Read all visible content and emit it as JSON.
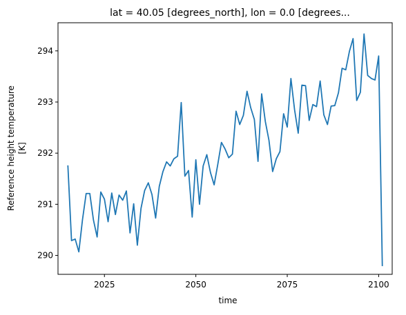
{
  "chart_data": {
    "type": "line",
    "title": "lat = 40.05 [degrees_north], lon = 0.0 [degrees...",
    "xlabel": "time",
    "ylabel": [
      "Reference height temperature",
      "[K]"
    ],
    "xlim": [
      2012.3,
      2103.7
    ],
    "ylim": [
      289.63,
      294.55
    ],
    "xticks": [
      2025,
      2050,
      2075,
      2100
    ],
    "yticks": [
      290,
      291,
      292,
      293,
      294
    ],
    "grid": false,
    "legend": "none",
    "series": [
      {
        "color": "#1f77b4",
        "x": [
          2015,
          2016,
          2017,
          2018,
          2019,
          2020,
          2021,
          2022,
          2023,
          2024,
          2025,
          2026,
          2027,
          2028,
          2029,
          2030,
          2031,
          2032,
          2033,
          2034,
          2035,
          2036,
          2037,
          2038,
          2039,
          2040,
          2041,
          2042,
          2043,
          2044,
          2045,
          2046,
          2047,
          2048,
          2049,
          2050,
          2051,
          2052,
          2053,
          2054,
          2055,
          2056,
          2057,
          2058,
          2059,
          2060,
          2061,
          2062,
          2063,
          2064,
          2065,
          2066,
          2067,
          2068,
          2069,
          2070,
          2071,
          2072,
          2073,
          2074,
          2075,
          2076,
          2077,
          2078,
          2079,
          2080,
          2081,
          2082,
          2083,
          2084,
          2085,
          2086,
          2087,
          2088,
          2089,
          2090,
          2091,
          2092,
          2093,
          2094,
          2095,
          2096,
          2097,
          2098,
          2099,
          2100,
          2101
        ],
        "values": [
          291.76,
          290.29,
          290.32,
          290.07,
          290.7,
          291.21,
          291.21,
          290.69,
          290.36,
          291.24,
          291.1,
          290.66,
          291.22,
          290.8,
          291.18,
          291.08,
          291.26,
          290.44,
          291.01,
          290.2,
          290.92,
          291.27,
          291.42,
          291.19,
          290.73,
          291.35,
          291.64,
          291.83,
          291.75,
          291.89,
          291.94,
          292.99,
          291.55,
          291.66,
          290.75,
          291.87,
          291.0,
          291.75,
          291.97,
          291.62,
          291.38,
          291.78,
          292.21,
          292.08,
          291.91,
          291.98,
          292.82,
          292.56,
          292.74,
          293.21,
          292.89,
          292.66,
          291.84,
          293.16,
          292.62,
          292.25,
          291.64,
          291.89,
          292.03,
          292.77,
          292.51,
          293.46,
          292.85,
          292.39,
          293.33,
          293.32,
          292.64,
          292.95,
          292.91,
          293.41,
          292.75,
          292.56,
          292.92,
          292.93,
          293.18,
          293.66,
          293.63,
          293.99,
          294.24,
          293.03,
          293.19,
          294.33,
          293.52,
          293.46,
          293.43,
          293.9,
          289.79
        ]
      }
    ]
  }
}
